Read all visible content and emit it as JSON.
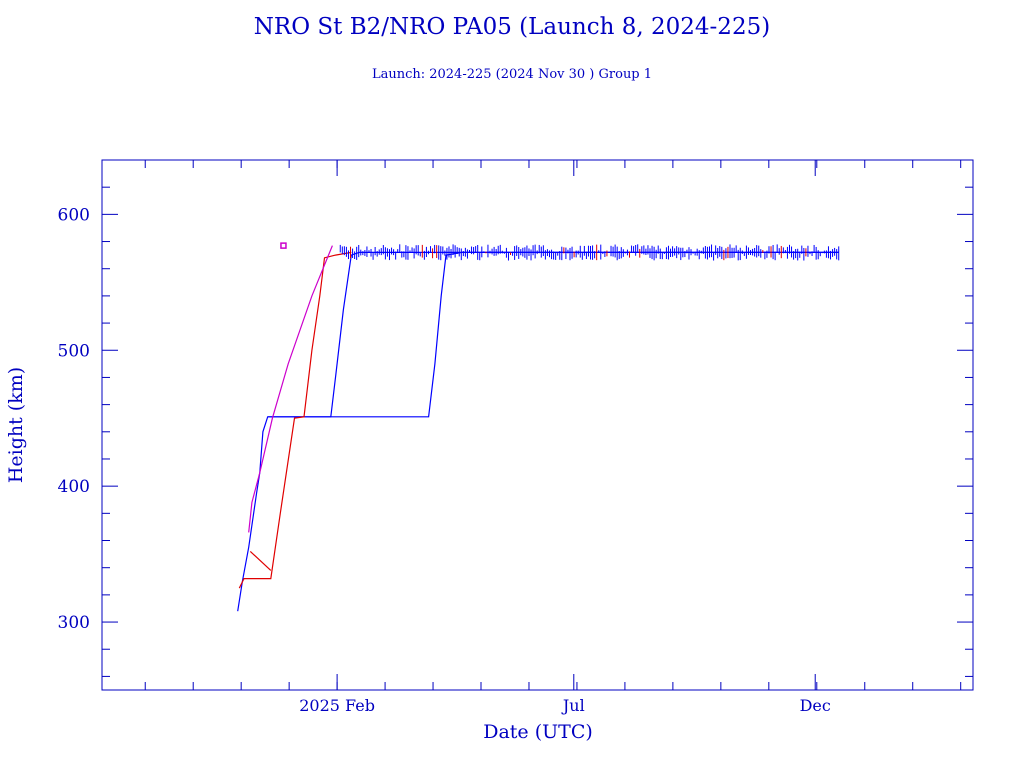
{
  "chart_data": {
    "type": "line",
    "title": "NRO St B2/NRO PA05 (Launch 8, 2024-225)",
    "subtitle": "Launch: 2024-225  (2024 Nov 30 )  Group 1",
    "xlabel": "Date (UTC)",
    "ylabel": "Height (km)",
    "x_units": "days since 2025-01-01",
    "xlim": [
      -118,
      434
    ],
    "ylim": [
      250,
      640
    ],
    "yticks": [
      300,
      400,
      500,
      600
    ],
    "ytick_labels": [
      "300",
      "400",
      "500",
      "600"
    ],
    "xticks": [
      {
        "day": 31,
        "label": "2025 Feb"
      },
      {
        "day": 181,
        "label": "Jul"
      },
      {
        "day": 334,
        "label": "Dec"
      }
    ],
    "grid": false,
    "colors": {
      "axis": "#0000c0",
      "blue": "#0000ff",
      "red": "#e00000",
      "magenta": "#cc00cc"
    },
    "series": [
      {
        "name": "blue-group-early",
        "color": "#0000ff",
        "points": [
          [
            -32,
            308
          ],
          [
            -29,
            330
          ],
          [
            -25,
            355
          ],
          [
            -20,
            395
          ],
          [
            -18,
            410
          ],
          [
            -16,
            440
          ],
          [
            -13,
            451
          ],
          [
            27,
            451
          ],
          [
            30,
            480
          ],
          [
            35,
            530
          ],
          [
            40,
            570
          ],
          [
            45,
            572
          ],
          [
            349,
            572
          ]
        ]
      },
      {
        "name": "blue-group-late",
        "color": "#0000ff",
        "points": [
          [
            -13,
            451
          ],
          [
            89,
            451
          ],
          [
            93,
            490
          ],
          [
            97,
            540
          ],
          [
            100,
            570
          ],
          [
            110,
            572
          ],
          [
            349,
            572
          ]
        ]
      },
      {
        "name": "red-group",
        "color": "#e00000",
        "points": [
          [
            -31,
            325
          ],
          [
            -28,
            332
          ],
          [
            -11,
            332
          ],
          [
            -5,
            380
          ],
          [
            4,
            450
          ],
          [
            10,
            451
          ],
          [
            15,
            500
          ],
          [
            20,
            540
          ],
          [
            23,
            568
          ],
          [
            30,
            570
          ],
          [
            40,
            572
          ]
        ]
      },
      {
        "name": "red-branch",
        "color": "#e00000",
        "points": [
          [
            -24,
            352
          ],
          [
            -11,
            338
          ]
        ]
      },
      {
        "name": "magenta-object",
        "color": "#cc00cc",
        "points": [
          [
            -25,
            366
          ],
          [
            -23,
            388
          ],
          [
            -18,
            410
          ],
          [
            -10,
            450
          ],
          [
            0,
            490
          ],
          [
            15,
            540
          ],
          [
            28,
            577
          ]
        ]
      }
    ],
    "markers": [
      {
        "name": "magenta-point",
        "color": "#cc00cc",
        "day": -3,
        "km": 577
      }
    ]
  }
}
